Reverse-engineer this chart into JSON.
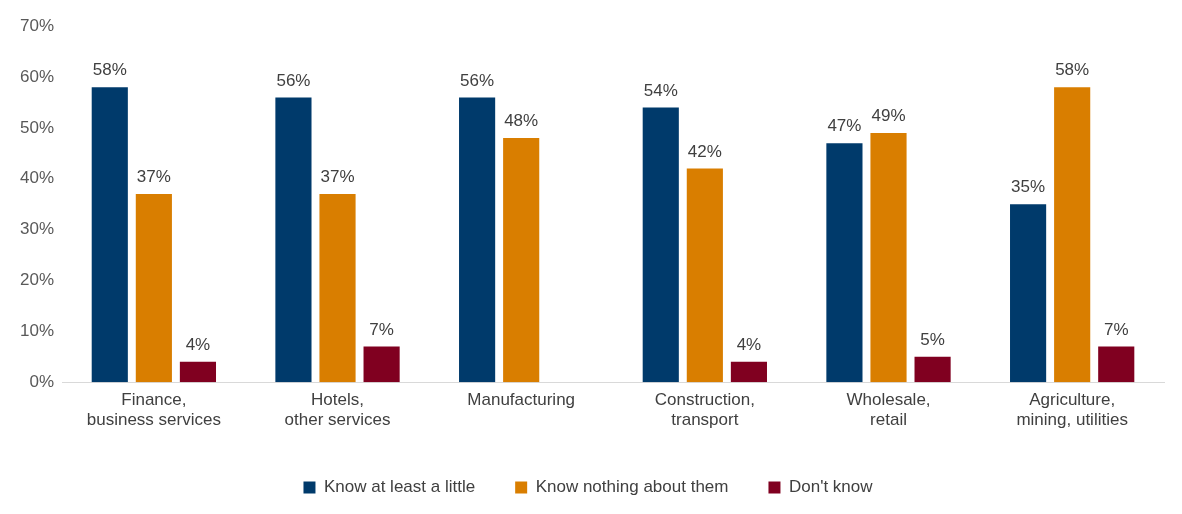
{
  "chart_data": {
    "type": "bar",
    "categories": [
      "Finance, business services",
      "Hotels, other services",
      "Manufacturing",
      "Construction, transport",
      "Wholesale, retail",
      "Agriculture, mining, utilities"
    ],
    "series": [
      {
        "name": "Know at least a little",
        "color": "#003a6b",
        "values": [
          58,
          56,
          56,
          54,
          47,
          35
        ],
        "value_labels": [
          "58%",
          "56%",
          "56%",
          "54%",
          "47%",
          "35%"
        ]
      },
      {
        "name": "Know nothing about them",
        "color": "#d97e00",
        "values": [
          37,
          37,
          48,
          42,
          49,
          58
        ],
        "value_labels": [
          "37%",
          "37%",
          "48%",
          "42%",
          "49%",
          "58%"
        ]
      },
      {
        "name": "Don't know",
        "color": "#800020",
        "values": [
          4,
          7,
          null,
          4,
          5,
          7
        ],
        "value_labels": [
          "4%",
          "7%",
          null,
          "4%",
          "5%",
          "7%"
        ]
      }
    ],
    "ylim": [
      0,
      70
    ],
    "yticks": [
      {
        "value": 0,
        "label": "0%"
      },
      {
        "value": 10,
        "label": "10%"
      },
      {
        "value": 20,
        "label": "20%"
      },
      {
        "value": 30,
        "label": "30%"
      },
      {
        "value": 40,
        "label": "40%"
      },
      {
        "value": 50,
        "label": "50%"
      },
      {
        "value": 60,
        "label": "60%"
      },
      {
        "value": 70,
        "label": "70%"
      }
    ],
    "grid": false,
    "legend": "bottom"
  }
}
